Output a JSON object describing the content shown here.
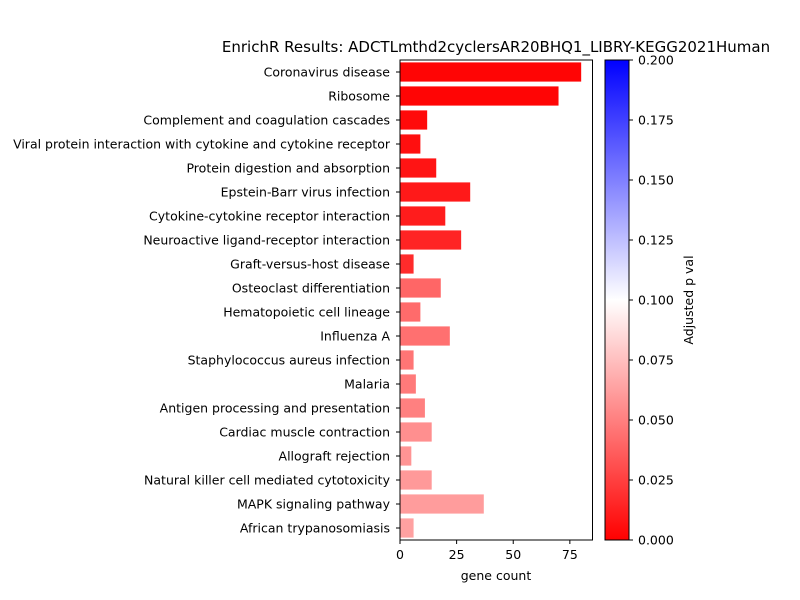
{
  "chart_data": {
    "type": "bar",
    "orientation": "horizontal",
    "title": "EnrichR Results: ADCTLmthd2cyclersAR20BHQ1_LIBRY-KEGG2021Human",
    "xlabel": "gene count",
    "ylabel": "",
    "xlim": [
      0,
      85
    ],
    "xticks": [
      0,
      25,
      50,
      75
    ],
    "categories": [
      "Coronavirus disease",
      "Ribosome",
      "Complement and coagulation cascades",
      "Viral protein interaction with cytokine and cytokine receptor",
      "Protein digestion and absorption",
      "Epstein-Barr virus infection",
      "Cytokine-cytokine receptor interaction",
      "Neuroactive ligand-receptor interaction",
      "Graft-versus-host disease",
      "Osteoclast differentiation",
      "Hematopoietic cell lineage",
      "Influenza A",
      "Staphylococcus aureus infection",
      "Malaria",
      "Antigen processing and presentation",
      "Cardiac muscle contraction",
      "Allograft rejection",
      "Natural killer cell mediated cytotoxicity",
      "MAPK signaling pathway",
      "African trypanosomiasis"
    ],
    "values": [
      80,
      70,
      12,
      9,
      16,
      31,
      20,
      27,
      6,
      18,
      9,
      22,
      6,
      7,
      11,
      14,
      5,
      14,
      37,
      6
    ],
    "adjusted_p_values": [
      0.002,
      0.002,
      0.004,
      0.006,
      0.008,
      0.01,
      0.011,
      0.014,
      0.017,
      0.04,
      0.042,
      0.044,
      0.046,
      0.048,
      0.05,
      0.056,
      0.058,
      0.06,
      0.061,
      0.063
    ],
    "colorbar": {
      "label": "Adjusted p val",
      "range": [
        0,
        0.2
      ],
      "ticks": [
        "0.000",
        "0.025",
        "0.050",
        "0.075",
        "0.100",
        "0.125",
        "0.150",
        "0.175",
        "0.200"
      ],
      "colors": [
        "#ff0000",
        "#ffffff",
        "#0000ff"
      ]
    },
    "grid": false,
    "legend": "none"
  }
}
